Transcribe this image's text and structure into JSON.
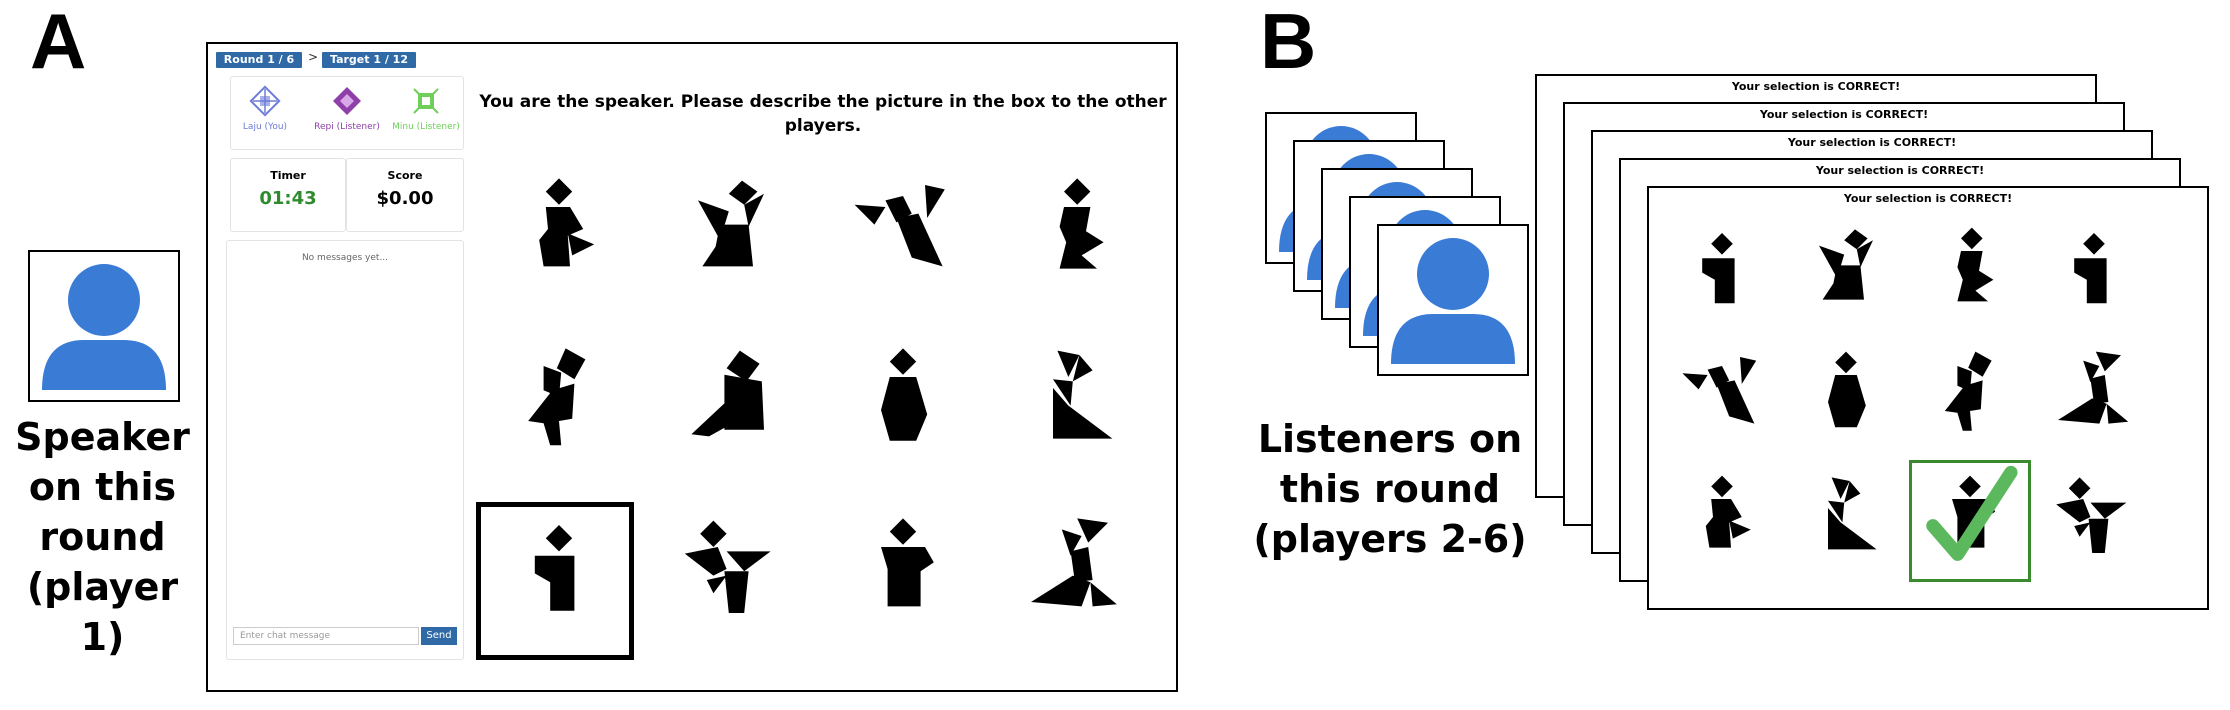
{
  "panel_a": {
    "letter": "A",
    "caption": [
      "Speaker",
      "on this",
      "round",
      "(player 1)"
    ],
    "game": {
      "round_label": "Round 1 / 6",
      "target_label": "Target 1 / 12",
      "crumb_separator": ">",
      "players": [
        {
          "name": "Laju (You)",
          "color": "#6d7bd9",
          "icon": "lattice-icon"
        },
        {
          "name": "Repi (Listener)",
          "color": "#8e3fa8",
          "icon": "diamond-icon"
        },
        {
          "name": "Minu (Listener)",
          "color": "#6fcf5a",
          "icon": "burst-icon"
        }
      ],
      "timer_title": "Timer",
      "timer_value": "01:43",
      "timer_color": "#2e8b2e",
      "score_title": "Score",
      "score_value": "$0.00",
      "chat_empty": "No messages yet...",
      "chat_placeholder": "Enter chat message",
      "send_label": "Send",
      "speaker_message": "You are the speaker. Please describe the picture in the box to the other players."
    }
  },
  "panel_b": {
    "letter": "B",
    "caption": [
      "Listeners on",
      "this round",
      "(players 2-6)"
    ],
    "feedback_messages": [
      "Your selection is CORRECT!",
      "Your selection is CORRECT!",
      "Your selection is CORRECT!",
      "Your selection is CORRECT!",
      "Your selection is CORRECT!"
    ]
  },
  "colors": {
    "avatar_blue": "#3a7bd5",
    "brand_blue": "#2f6aa6",
    "check_green": "#5cb85c",
    "selection_green": "#3a8a2e"
  }
}
